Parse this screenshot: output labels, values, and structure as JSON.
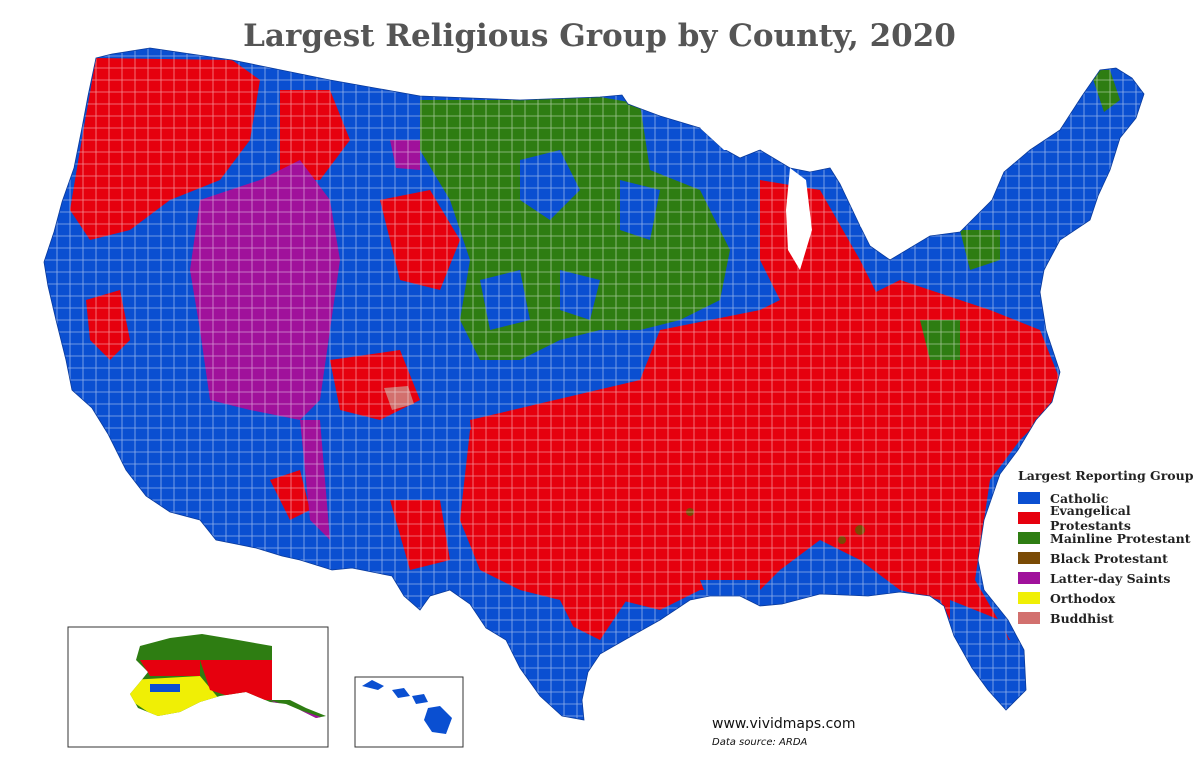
{
  "title": "Largest Religious Group by County, 2020",
  "legend": {
    "title": "Largest Reporting Group",
    "items": [
      {
        "label": "Catholic",
        "color": "#0a4fd1"
      },
      {
        "label": "Evangelical Protestants",
        "color": "#e6000e"
      },
      {
        "label": "Mainline Protestant",
        "color": "#2e7d12"
      },
      {
        "label": "Black Protestant",
        "color": "#7a4a05"
      },
      {
        "label": "Latter-day Saints",
        "color": "#a0119b"
      },
      {
        "label": "Orthodox",
        "color": "#f0ef05"
      },
      {
        "label": "Buddhist",
        "color": "#d2706e"
      }
    ]
  },
  "credit": {
    "site": "www.vividmaps.com",
    "source": "Data source: ARDA"
  }
}
